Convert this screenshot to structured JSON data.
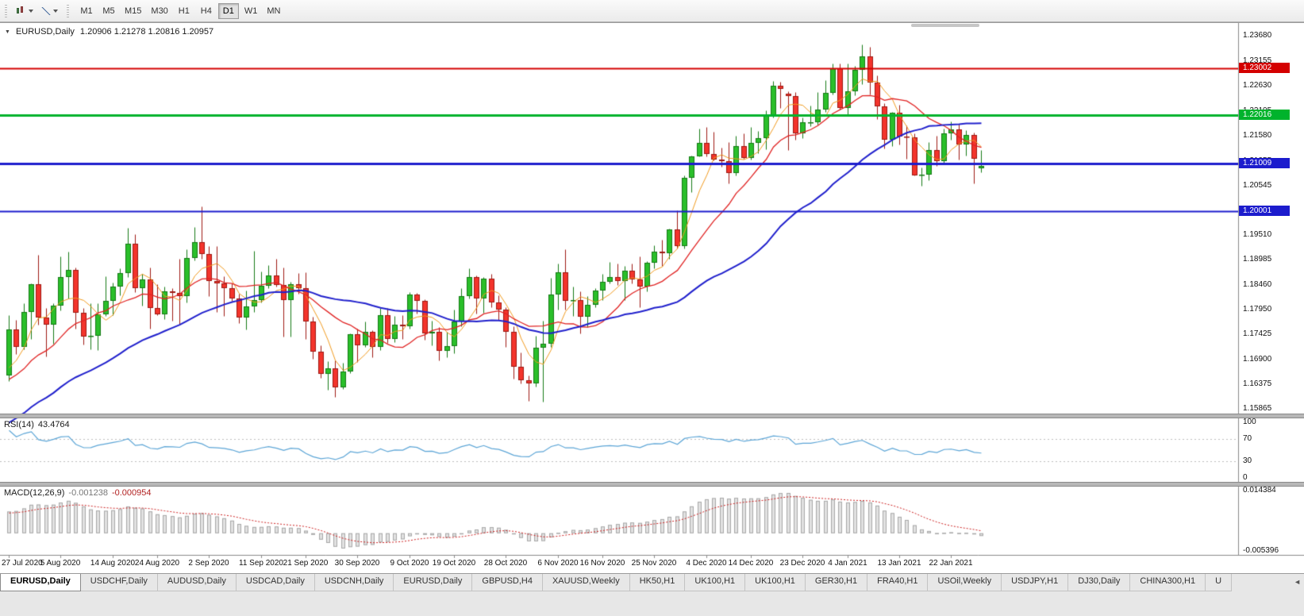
{
  "toolbar": {
    "left_buttons": [
      {
        "name": "chart-type",
        "icon": "candlestick-icon"
      },
      {
        "name": "indicators",
        "icon": "chart-line-icon"
      }
    ],
    "timeframes": [
      {
        "label": "M1",
        "active": false
      },
      {
        "label": "M5",
        "active": false
      },
      {
        "label": "M15",
        "active": false
      },
      {
        "label": "M30",
        "active": false
      },
      {
        "label": "H1",
        "active": false
      },
      {
        "label": "H4",
        "active": false
      },
      {
        "label": "D1",
        "active": true
      },
      {
        "label": "W1",
        "active": false
      },
      {
        "label": "MN",
        "active": false
      }
    ]
  },
  "chart": {
    "title_symbol": "EURUSD,Daily",
    "title_ohlc": "1.20906 1.21278 1.20816 1.20957",
    "collapse_icon": "▼"
  },
  "price_scale_labels": [
    "1.23680",
    "1.23155",
    "1.22630",
    "1.22105",
    "1.21580",
    "1.21055",
    "1.20545",
    "1.20020",
    "1.19510",
    "1.18985",
    "1.18460",
    "1.17950",
    "1.17425",
    "1.16900",
    "1.16375",
    "1.15865"
  ],
  "hlines": [
    {
      "price": 1.23002,
      "label": "1.23002",
      "color": "#d40000",
      "width": 2
    },
    {
      "price": 1.22016,
      "label": "1.22016",
      "color": "#00b32c",
      "width": 3
    },
    {
      "price": 1.21009,
      "label": "1.21009",
      "color": "#1c1ccd",
      "width": 3
    },
    {
      "price": 1.20001,
      "label": "1.20001",
      "color": "#1c1ccd",
      "width": 2
    }
  ],
  "time_ticks": [
    {
      "label": "27 Jul 2020",
      "bar": 0
    },
    {
      "label": "5 Aug 2020",
      "bar": 7
    },
    {
      "label": "14 Aug 2020",
      "bar": 14
    },
    {
      "label": "24 Aug 2020",
      "bar": 20
    },
    {
      "label": "2 Sep 2020",
      "bar": 27
    },
    {
      "label": "11 Sep 2020",
      "bar": 34
    },
    {
      "label": "21 Sep 2020",
      "bar": 40
    },
    {
      "label": "30 Sep 2020",
      "bar": 47
    },
    {
      "label": "9 Oct 2020",
      "bar": 54
    },
    {
      "label": "19 Oct 2020",
      "bar": 60
    },
    {
      "label": "28 Oct 2020",
      "bar": 67
    },
    {
      "label": "6 Nov 2020",
      "bar": 74
    },
    {
      "label": "16 Nov 2020",
      "bar": 80
    },
    {
      "label": "25 Nov 2020",
      "bar": 87
    },
    {
      "label": "4 Dec 2020",
      "bar": 94
    },
    {
      "label": "14 Dec 2020",
      "bar": 100
    },
    {
      "label": "23 Dec 2020",
      "bar": 107
    },
    {
      "label": "4 Jan 2021",
      "bar": 113
    },
    {
      "label": "13 Jan 2021",
      "bar": 120
    },
    {
      "label": "22 Jan 2021",
      "bar": 127
    }
  ],
  "rsi": {
    "label": "RSI(14)",
    "value": "43.4764",
    "scale": [
      "100",
      "70",
      "30",
      "0"
    ],
    "levels": [
      70,
      30
    ],
    "line_color": "#5ca5d6"
  },
  "macd": {
    "label": "MACD(12,26,9)",
    "main_value": "-0.001238",
    "signal_value": "-0.000954",
    "scale_top": "0.014384",
    "scale_bottom": "-0.005396",
    "histogram_fill": "#e2e2e2",
    "histogram_stroke": "#a8a8a8",
    "signal_color": "#cc2020"
  },
  "chart_data": {
    "type": "candlestick",
    "symbol": "EURUSD",
    "period": "Daily",
    "y_axis": {
      "max": 1.239,
      "min": 1.1575
    },
    "bull_fill": "#2abf2a",
    "bull_stroke": "#157a15",
    "bear_fill": "#f3342c",
    "bear_stroke": "#9e1812",
    "ma_settings": [
      {
        "type": "sma",
        "period": 5,
        "color": "#f09a1e",
        "width": 1
      },
      {
        "type": "sma",
        "period": 13,
        "color": "#e02222",
        "width": 1.3
      },
      {
        "type": "sma",
        "period": 34,
        "color": "#2020cc",
        "width": 2
      }
    ],
    "warmup_closes": [
      1.1402,
      1.1395,
      1.1418,
      1.143,
      1.1422,
      1.1448,
      1.146,
      1.1452,
      1.1475,
      1.149,
      1.1482,
      1.1505,
      1.152,
      1.1512,
      1.1535,
      1.1548,
      1.154,
      1.1562,
      1.1575,
      1.1568,
      1.159,
      1.1602,
      1.1595,
      1.1618,
      1.163,
      1.1622,
      1.1645,
      1.1656,
      1.1648,
      1.165,
      1.164,
      1.1655,
      1.166,
      1.1656
    ],
    "ohlc": [
      [
        1.1656,
        1.1782,
        1.1645,
        1.1752
      ],
      [
        1.1752,
        1.1773,
        1.1701,
        1.1716
      ],
      [
        1.1716,
        1.1807,
        1.1712,
        1.179
      ],
      [
        1.179,
        1.185,
        1.1732,
        1.1847
      ],
      [
        1.1847,
        1.1909,
        1.1763,
        1.1778
      ],
      [
        1.1778,
        1.1797,
        1.1696,
        1.1762
      ],
      [
        1.1762,
        1.1807,
        1.1723,
        1.1803
      ],
      [
        1.1803,
        1.1905,
        1.1793,
        1.1863
      ],
      [
        1.1863,
        1.1916,
        1.1817,
        1.1878
      ],
      [
        1.1878,
        1.1883,
        1.1754,
        1.1787
      ],
      [
        1.1787,
        1.1798,
        1.1722,
        1.1737
      ],
      [
        1.1737,
        1.1808,
        1.1711,
        1.174
      ],
      [
        1.174,
        1.1807,
        1.171,
        1.1784
      ],
      [
        1.1784,
        1.1864,
        1.1781,
        1.1813
      ],
      [
        1.1813,
        1.1851,
        1.1783,
        1.1842
      ],
      [
        1.1842,
        1.188,
        1.1825,
        1.1871
      ],
      [
        1.1871,
        1.1966,
        1.1863,
        1.1933
      ],
      [
        1.1933,
        1.1952,
        1.1831,
        1.1839
      ],
      [
        1.1839,
        1.1869,
        1.1803,
        1.1858
      ],
      [
        1.1858,
        1.1882,
        1.1755,
        1.1797
      ],
      [
        1.1797,
        1.1848,
        1.1783,
        1.1785
      ],
      [
        1.1785,
        1.1843,
        1.1774,
        1.1833
      ],
      [
        1.1833,
        1.184,
        1.1771,
        1.183
      ],
      [
        1.183,
        1.19,
        1.1763,
        1.1822
      ],
      [
        1.1822,
        1.192,
        1.181,
        1.1903
      ],
      [
        1.1903,
        1.1968,
        1.1898,
        1.1936
      ],
      [
        1.1936,
        1.2011,
        1.1901,
        1.1911
      ],
      [
        1.1911,
        1.1928,
        1.1822,
        1.1855
      ],
      [
        1.1855,
        1.1927,
        1.1789,
        1.185
      ],
      [
        1.185,
        1.1865,
        1.1781,
        1.184
      ],
      [
        1.184,
        1.1849,
        1.1812,
        1.1817
      ],
      [
        1.1817,
        1.1827,
        1.1766,
        1.1777
      ],
      [
        1.1777,
        1.1834,
        1.1753,
        1.1801
      ],
      [
        1.1801,
        1.1917,
        1.1789,
        1.1814
      ],
      [
        1.1814,
        1.1874,
        1.1809,
        1.1845
      ],
      [
        1.1845,
        1.1888,
        1.1839,
        1.1866
      ],
      [
        1.1866,
        1.19,
        1.1842,
        1.1846
      ],
      [
        1.1846,
        1.1882,
        1.1737,
        1.1815
      ],
      [
        1.1815,
        1.1852,
        1.1738,
        1.1847
      ],
      [
        1.1847,
        1.1871,
        1.1827,
        1.1839
      ],
      [
        1.1839,
        1.1872,
        1.1732,
        1.177
      ],
      [
        1.177,
        1.178,
        1.1692,
        1.1707
      ],
      [
        1.1707,
        1.1719,
        1.1651,
        1.166
      ],
      [
        1.166,
        1.1686,
        1.1626,
        1.1672
      ],
      [
        1.1672,
        1.1688,
        1.1612,
        1.1631
      ],
      [
        1.1631,
        1.1683,
        1.1628,
        1.1664
      ],
      [
        1.1664,
        1.1745,
        1.1662,
        1.1742
      ],
      [
        1.1742,
        1.1755,
        1.1684,
        1.172
      ],
      [
        1.172,
        1.1769,
        1.1717,
        1.1748
      ],
      [
        1.1748,
        1.1751,
        1.1695,
        1.1716
      ],
      [
        1.1716,
        1.1797,
        1.1709,
        1.1783
      ],
      [
        1.1783,
        1.1798,
        1.1725,
        1.1733
      ],
      [
        1.1733,
        1.1781,
        1.1727,
        1.1763
      ],
      [
        1.1763,
        1.1782,
        1.1733,
        1.176
      ],
      [
        1.176,
        1.1831,
        1.1755,
        1.1826
      ],
      [
        1.1826,
        1.183,
        1.1786,
        1.1812
      ],
      [
        1.1812,
        1.1816,
        1.1731,
        1.1745
      ],
      [
        1.1745,
        1.1771,
        1.172,
        1.1747
      ],
      [
        1.1747,
        1.1758,
        1.1688,
        1.1708
      ],
      [
        1.1708,
        1.1747,
        1.1694,
        1.1718
      ],
      [
        1.1718,
        1.1794,
        1.1703,
        1.1769
      ],
      [
        1.1769,
        1.184,
        1.176,
        1.1823
      ],
      [
        1.1823,
        1.1881,
        1.1817,
        1.1862
      ],
      [
        1.1862,
        1.1866,
        1.1786,
        1.1817
      ],
      [
        1.1817,
        1.1863,
        1.1787,
        1.186
      ],
      [
        1.186,
        1.187,
        1.18,
        1.181
      ],
      [
        1.181,
        1.1824,
        1.1772,
        1.1794
      ],
      [
        1.1794,
        1.18,
        1.1717,
        1.1747
      ],
      [
        1.1747,
        1.1759,
        1.165,
        1.1674
      ],
      [
        1.1674,
        1.1704,
        1.164,
        1.1647
      ],
      [
        1.1647,
        1.1656,
        1.1603,
        1.164
      ],
      [
        1.164,
        1.174,
        1.1633,
        1.1715
      ],
      [
        1.1715,
        1.1771,
        1.1602,
        1.1723
      ],
      [
        1.1723,
        1.1861,
        1.1716,
        1.1826
      ],
      [
        1.1826,
        1.189,
        1.1795,
        1.1873
      ],
      [
        1.1873,
        1.1921,
        1.1795,
        1.1813
      ],
      [
        1.1813,
        1.1843,
        1.1781,
        1.1815
      ],
      [
        1.1815,
        1.1833,
        1.1745,
        1.1779
      ],
      [
        1.1779,
        1.1823,
        1.1757,
        1.1804
      ],
      [
        1.1804,
        1.184,
        1.1799,
        1.1834
      ],
      [
        1.1834,
        1.1869,
        1.1814,
        1.1853
      ],
      [
        1.1853,
        1.1894,
        1.1849,
        1.1863
      ],
      [
        1.1863,
        1.1891,
        1.1846,
        1.1854
      ],
      [
        1.1854,
        1.1885,
        1.1815,
        1.1876
      ],
      [
        1.1876,
        1.1891,
        1.1849,
        1.1857
      ],
      [
        1.1857,
        1.1906,
        1.18,
        1.1842
      ],
      [
        1.1842,
        1.1895,
        1.1833,
        1.1893
      ],
      [
        1.1893,
        1.1929,
        1.1881,
        1.1915
      ],
      [
        1.1915,
        1.1941,
        1.1886,
        1.1912
      ],
      [
        1.1912,
        1.1964,
        1.19,
        1.1963
      ],
      [
        1.1963,
        1.2003,
        1.1923,
        1.1927
      ],
      [
        1.1927,
        1.2076,
        1.1923,
        1.2071
      ],
      [
        1.2071,
        1.2117,
        1.204,
        1.2116
      ],
      [
        1.2116,
        1.2174,
        1.2115,
        1.2143
      ],
      [
        1.2143,
        1.2177,
        1.2116,
        1.2121
      ],
      [
        1.2121,
        1.2166,
        1.2107,
        1.2108
      ],
      [
        1.2108,
        1.2133,
        1.2094,
        1.2105
      ],
      [
        1.2105,
        1.2146,
        1.2058,
        1.208
      ],
      [
        1.208,
        1.2158,
        1.2075,
        1.2137
      ],
      [
        1.2137,
        1.2163,
        1.211,
        1.2112
      ],
      [
        1.2112,
        1.2177,
        1.2109,
        1.2143
      ],
      [
        1.2143,
        1.2169,
        1.2122,
        1.2153
      ],
      [
        1.2153,
        1.2212,
        1.213,
        1.22
      ],
      [
        1.22,
        1.2273,
        1.2197,
        1.2264
      ],
      [
        1.2264,
        1.2272,
        1.2216,
        1.2256
      ],
      [
        1.2246,
        1.2252,
        1.2129,
        1.2241
      ],
      [
        1.2241,
        1.225,
        1.2151,
        1.2163
      ],
      [
        1.2163,
        1.2196,
        1.2153,
        1.2187
      ],
      [
        1.2187,
        1.2222,
        1.2179,
        1.2187
      ],
      [
        1.2187,
        1.225,
        1.2181,
        1.2213
      ],
      [
        1.2213,
        1.2275,
        1.2208,
        1.2249
      ],
      [
        1.2249,
        1.231,
        1.2245,
        1.2299
      ],
      [
        1.2299,
        1.231,
        1.2214,
        1.2216
      ],
      [
        1.2216,
        1.231,
        1.22,
        1.2251
      ],
      [
        1.2251,
        1.2304,
        1.2244,
        1.2297
      ],
      [
        1.2297,
        1.2349,
        1.2266,
        1.2325
      ],
      [
        1.2325,
        1.2344,
        1.2245,
        1.227
      ],
      [
        1.227,
        1.2285,
        1.2193,
        1.222
      ],
      [
        1.222,
        1.2226,
        1.2132,
        1.215
      ],
      [
        1.215,
        1.2208,
        1.2137,
        1.2207
      ],
      [
        1.2207,
        1.2223,
        1.214,
        1.2157
      ],
      [
        1.2157,
        1.218,
        1.2111,
        1.2155
      ],
      [
        1.2155,
        1.2163,
        1.2075,
        1.2076
      ],
      [
        1.2076,
        1.2092,
        1.2054,
        1.2077
      ],
      [
        1.2077,
        1.2145,
        1.2066,
        1.2129
      ],
      [
        1.2129,
        1.2158,
        1.2095,
        1.2105
      ],
      [
        1.2105,
        1.2173,
        1.2102,
        1.2163
      ],
      [
        1.2163,
        1.2189,
        1.2151,
        1.2171
      ],
      [
        1.2171,
        1.2183,
        1.2108,
        1.214
      ],
      [
        1.214,
        1.217,
        1.2117,
        1.216
      ],
      [
        1.216,
        1.2165,
        1.2058,
        1.211
      ],
      [
        1.20906,
        1.21278,
        1.20816,
        1.20957
      ]
    ]
  },
  "tabbar": {
    "scroll_left_icon": "◄",
    "tabs": [
      {
        "label": "EURUSD,Daily",
        "active": true
      },
      {
        "label": "USDCHF,Daily",
        "active": false
      },
      {
        "label": "AUDUSD,Daily",
        "active": false
      },
      {
        "label": "USDCAD,Daily",
        "active": false
      },
      {
        "label": "USDCNH,Daily",
        "active": false
      },
      {
        "label": "EURUSD,Daily",
        "active": false
      },
      {
        "label": "GBPUSD,H4",
        "active": false
      },
      {
        "label": "XAUUSD,Weekly",
        "active": false
      },
      {
        "label": "HK50,H1",
        "active": false
      },
      {
        "label": "UK100,H1",
        "active": false
      },
      {
        "label": "UK100,H1",
        "active": false
      },
      {
        "label": "GER30,H1",
        "active": false
      },
      {
        "label": "FRA40,H1",
        "active": false
      },
      {
        "label": "USOil,Weekly",
        "active": false
      },
      {
        "label": "USDJPY,H1",
        "active": false
      },
      {
        "label": "DJ30,Daily",
        "active": false
      },
      {
        "label": "CHINA300,H1",
        "active": false
      },
      {
        "label": "U",
        "active": false
      }
    ]
  }
}
